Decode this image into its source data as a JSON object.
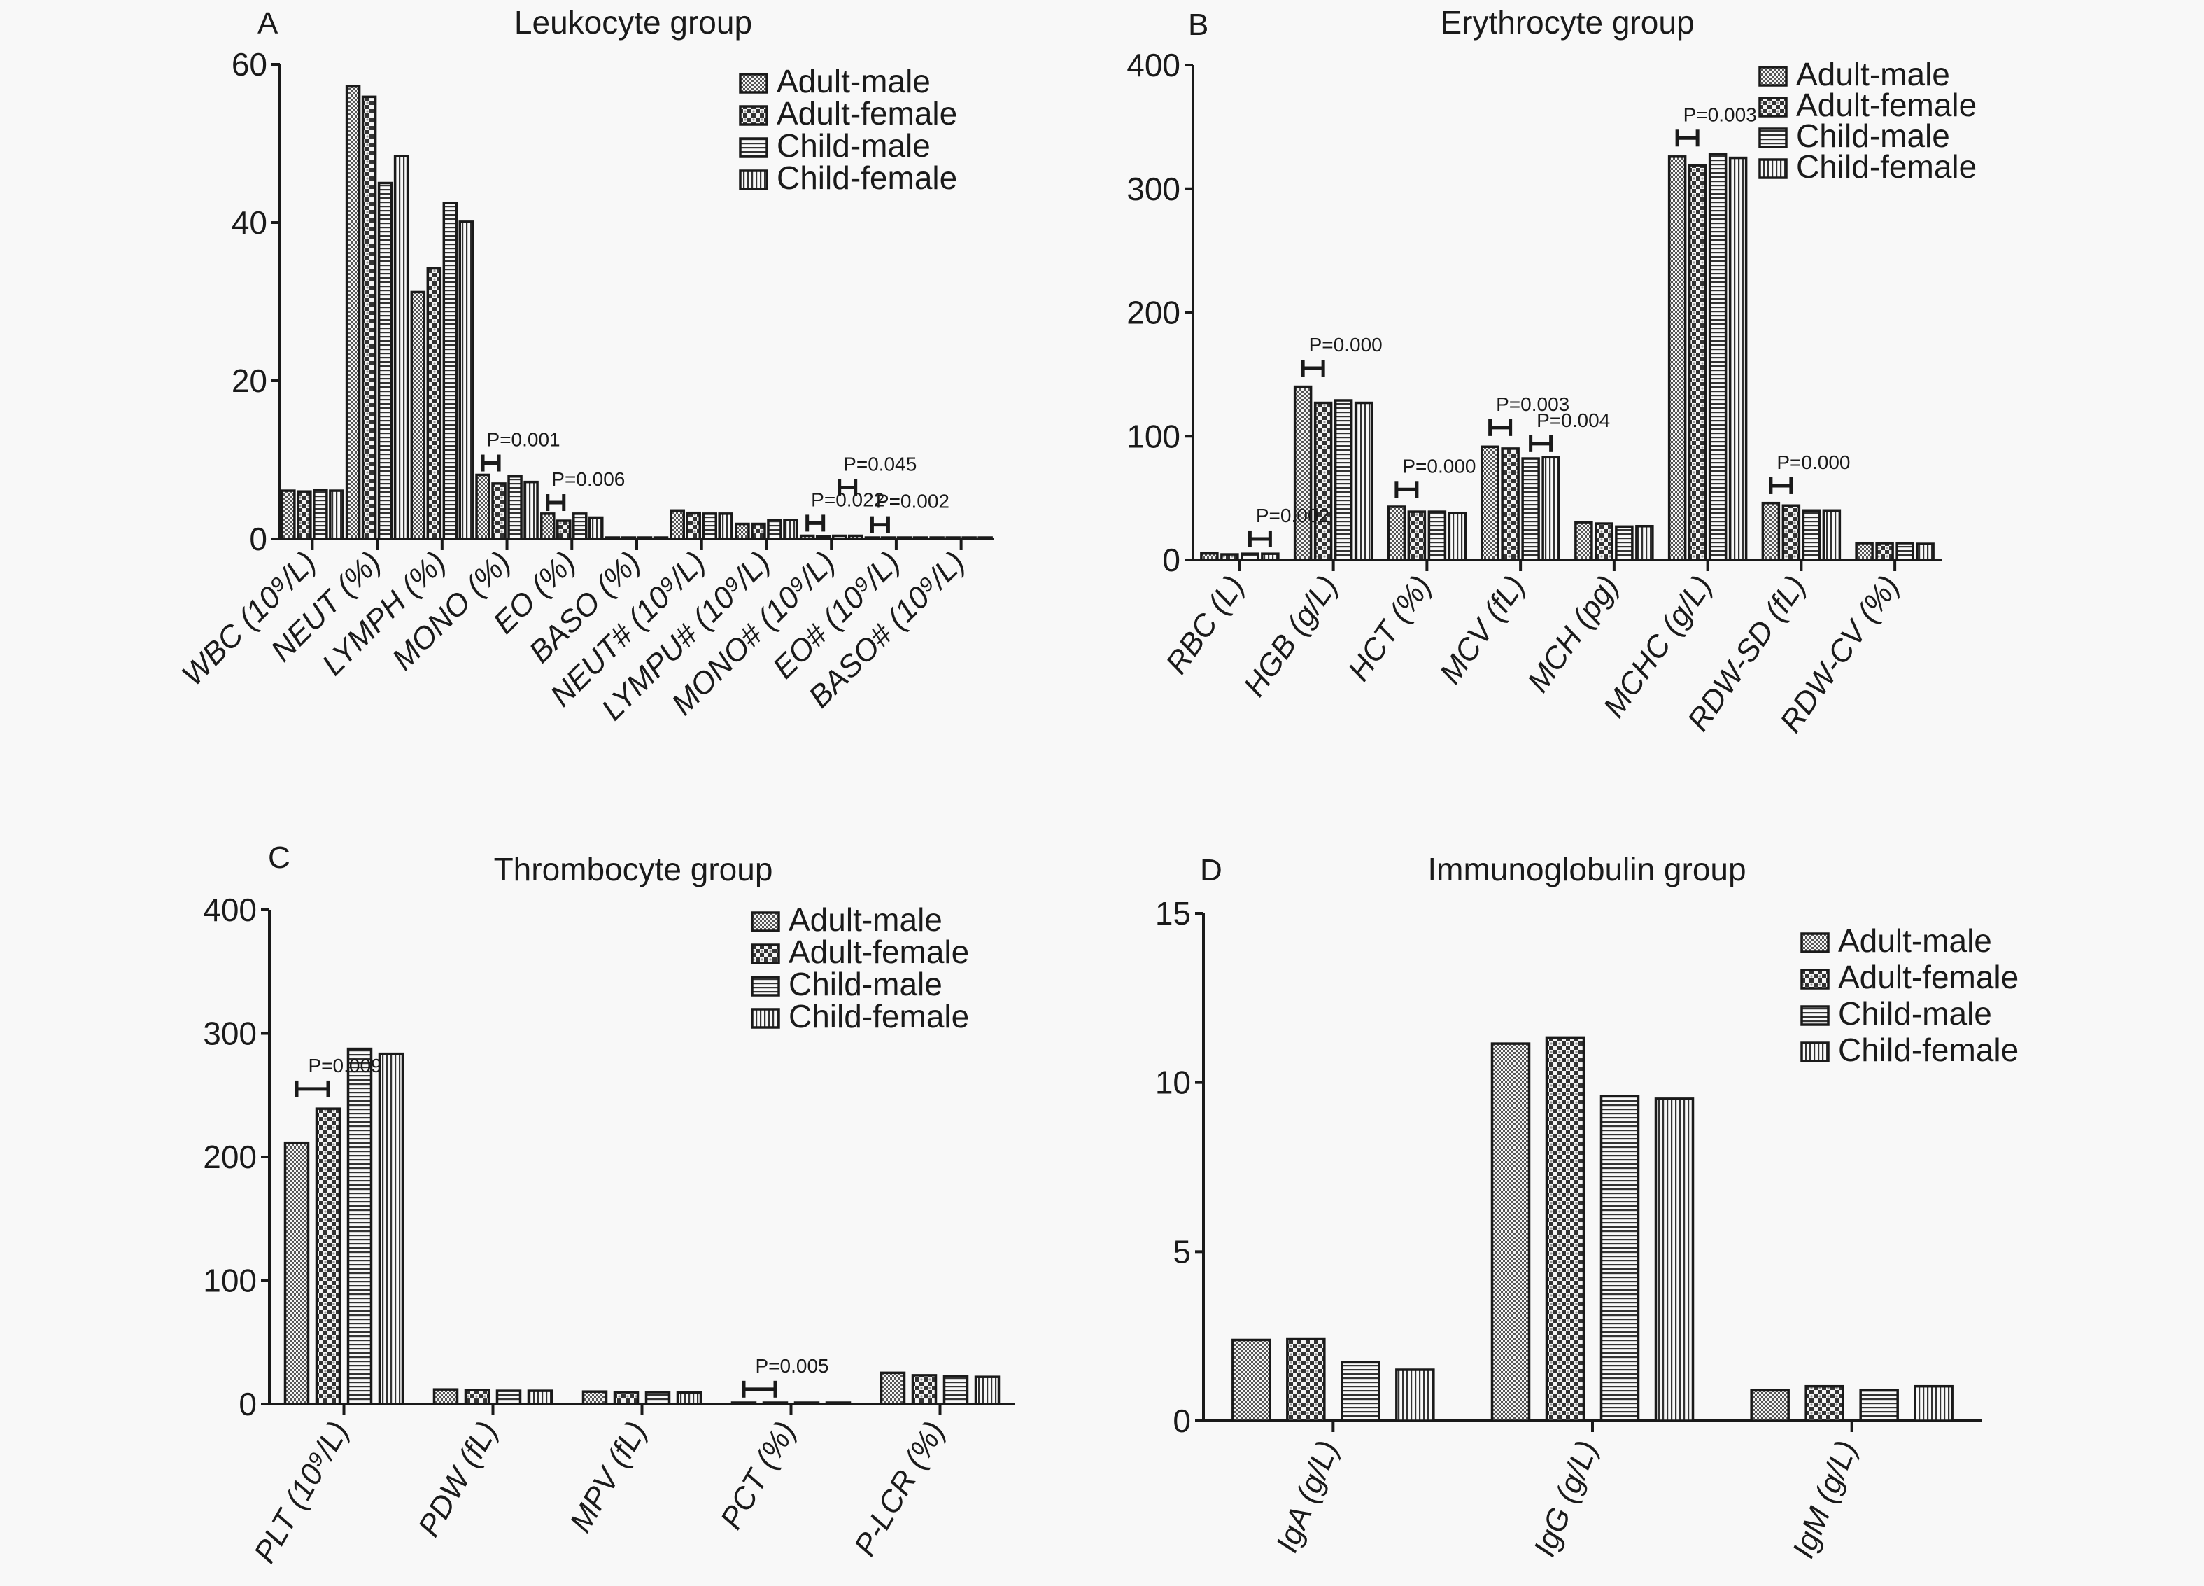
{
  "figure": {
    "series_names": [
      "Adult-male",
      "Adult-female",
      "Child-male",
      "Child-female"
    ],
    "series_patterns": [
      "dense-dots",
      "checker",
      "horizontal-lines",
      "vertical-lines"
    ]
  },
  "chart_data": [
    {
      "type": "bar",
      "panel": "A",
      "title": "Leukocyte group",
      "xlabel": "",
      "ylabel": "",
      "ylim": [
        0,
        60
      ],
      "yticks": [
        "0",
        "20",
        "40",
        "60"
      ],
      "legend": "top-right",
      "grid": false,
      "categories": [
        "WBC (10⁹/L)",
        "NEUT (%)",
        "LYMPH (%)",
        "MONO (%)",
        "EO (%)",
        "BASO (%)",
        "NEUT# (10⁹/L)",
        "LYMPU# (10⁹/L)",
        "MONO# (10⁹/L)",
        "EO# (10⁹/L)",
        "BASO# (10⁹/L)"
      ],
      "series": [
        {
          "name": "Adult-male",
          "values": [
            6.1,
            57.2,
            31.2,
            8.1,
            3.2,
            0.1,
            3.6,
            1.9,
            0.4,
            0.15,
            0.03
          ]
        },
        {
          "name": "Adult-female",
          "values": [
            6.0,
            55.9,
            34.2,
            7.0,
            2.3,
            0.1,
            3.3,
            1.9,
            0.3,
            0.1,
            0.03
          ]
        },
        {
          "name": "Child-male",
          "values": [
            6.2,
            45.0,
            42.5,
            7.9,
            3.2,
            0.1,
            3.2,
            2.4,
            0.4,
            0.15,
            0.03
          ]
        },
        {
          "name": "Child-female",
          "values": [
            6.1,
            48.4,
            40.1,
            7.2,
            2.7,
            0.1,
            3.2,
            2.4,
            0.4,
            0.15,
            0.03
          ]
        }
      ],
      "annotations": [
        {
          "label": "P=0.001",
          "category": 3,
          "from_series": 0,
          "to_series": 1,
          "y": 9.6
        },
        {
          "label": "P=0.006",
          "category": 4,
          "from_series": 0,
          "to_series": 1,
          "y": 4.6
        },
        {
          "label": "P=0.022",
          "category": 8,
          "from_series": 0,
          "to_series": 1,
          "y": 2.0
        },
        {
          "label": "P=0.045",
          "category": 8,
          "from_series": 2,
          "to_series": 3,
          "y": 6.5
        },
        {
          "label": "P=0.002",
          "category": 9,
          "from_series": 0,
          "to_series": 1,
          "y": 1.8
        }
      ]
    },
    {
      "type": "bar",
      "panel": "B",
      "title": "Erythrocyte group",
      "xlabel": "",
      "ylabel": "",
      "ylim": [
        0,
        400
      ],
      "yticks": [
        "0",
        "100",
        "200",
        "300",
        "400"
      ],
      "legend": "top-right",
      "grid": false,
      "categories": [
        "RBC (L)",
        "HGB (g/L)",
        "HCT (%)",
        "MCV (fL)",
        "MCH (pg)",
        "MCHC (g/L)",
        "RDW-SD (fL)",
        "RDW-CV (%)"
      ],
      "series": [
        {
          "name": "Adult-male",
          "values": [
            5.3,
            140,
            43,
            91.5,
            30.5,
            326,
            46,
            13.6
          ]
        },
        {
          "name": "Adult-female",
          "values": [
            4.5,
            127,
            39,
            90,
            29.4,
            319,
            44,
            13.6
          ]
        },
        {
          "name": "Child-male",
          "values": [
            5.0,
            129,
            39,
            82,
            27,
            328,
            40,
            13.6
          ]
        },
        {
          "name": "Child-female",
          "values": [
            5.0,
            127,
            38,
            83,
            27.3,
            325,
            40,
            13.0
          ]
        }
      ],
      "annotations": [
        {
          "label": "P=0.002",
          "category": 0,
          "from_series": 2,
          "to_series": 3,
          "y": 17
        },
        {
          "label": "P=0.000",
          "category": 1,
          "from_series": 0,
          "to_series": 1,
          "y": 155
        },
        {
          "label": "P=0.000",
          "category": 2,
          "from_series": 0,
          "to_series": 1,
          "y": 57
        },
        {
          "label": "P=0.003",
          "category": 3,
          "from_series": 0,
          "to_series": 1,
          "y": 107
        },
        {
          "label": "P=0.004",
          "category": 3,
          "from_series": 2,
          "to_series": 3,
          "y": 94
        },
        {
          "label": "P=0.003",
          "category": 5,
          "from_series": 0,
          "to_series": 1,
          "y": 341
        },
        {
          "label": "P=0.000",
          "category": 6,
          "from_series": 0,
          "to_series": 1,
          "y": 60
        }
      ]
    },
    {
      "type": "bar",
      "panel": "C",
      "title": "Thrombocyte group",
      "xlabel": "",
      "ylabel": "",
      "ylim": [
        0,
        400
      ],
      "yticks": [
        "0",
        "100",
        "200",
        "300",
        "400"
      ],
      "legend": "top-right",
      "grid": false,
      "categories": [
        "PLT (10⁹/L)",
        "PDW (fL)",
        "MPV (fL)",
        "PCT (%)",
        "P-LCR (%)"
      ],
      "series": [
        {
          "name": "Adult-male",
          "values": [
            211.5,
            11.8,
            10.1,
            0.25,
            25.3
          ]
        },
        {
          "name": "Adult-female",
          "values": [
            239,
            11.2,
            9.6,
            0.27,
            23.3
          ]
        },
        {
          "name": "Child-male",
          "values": [
            287.5,
            10.7,
            9.6,
            0.28,
            22.5
          ]
        },
        {
          "name": "Child-female",
          "values": [
            283.5,
            10.7,
            9.3,
            0.28,
            22
          ]
        }
      ],
      "annotations": [
        {
          "label": "P=0.009",
          "category": 0,
          "from_series": 0,
          "to_series": 1,
          "y": 255
        },
        {
          "label": "P=0.005",
          "category": 3,
          "from_series": 0,
          "to_series": 1,
          "y": 12
        }
      ]
    },
    {
      "type": "bar",
      "panel": "D",
      "title": "Immunoglobulin group",
      "xlabel": "",
      "ylabel": "",
      "ylim": [
        0,
        15
      ],
      "yticks": [
        "0",
        "5",
        "10",
        "15"
      ],
      "legend": "top-right",
      "grid": false,
      "categories": [
        "IgA (g/L)",
        "IgG (g/L)",
        "IgM (g/L)"
      ],
      "series": [
        {
          "name": "Adult-male",
          "values": [
            2.39,
            11.15,
            0.9
          ]
        },
        {
          "name": "Adult-female",
          "values": [
            2.43,
            11.33,
            1.02
          ]
        },
        {
          "name": "Child-male",
          "values": [
            1.73,
            9.6,
            0.9
          ]
        },
        {
          "name": "Child-female",
          "values": [
            1.51,
            9.52,
            1.02
          ]
        }
      ],
      "annotations": []
    }
  ]
}
